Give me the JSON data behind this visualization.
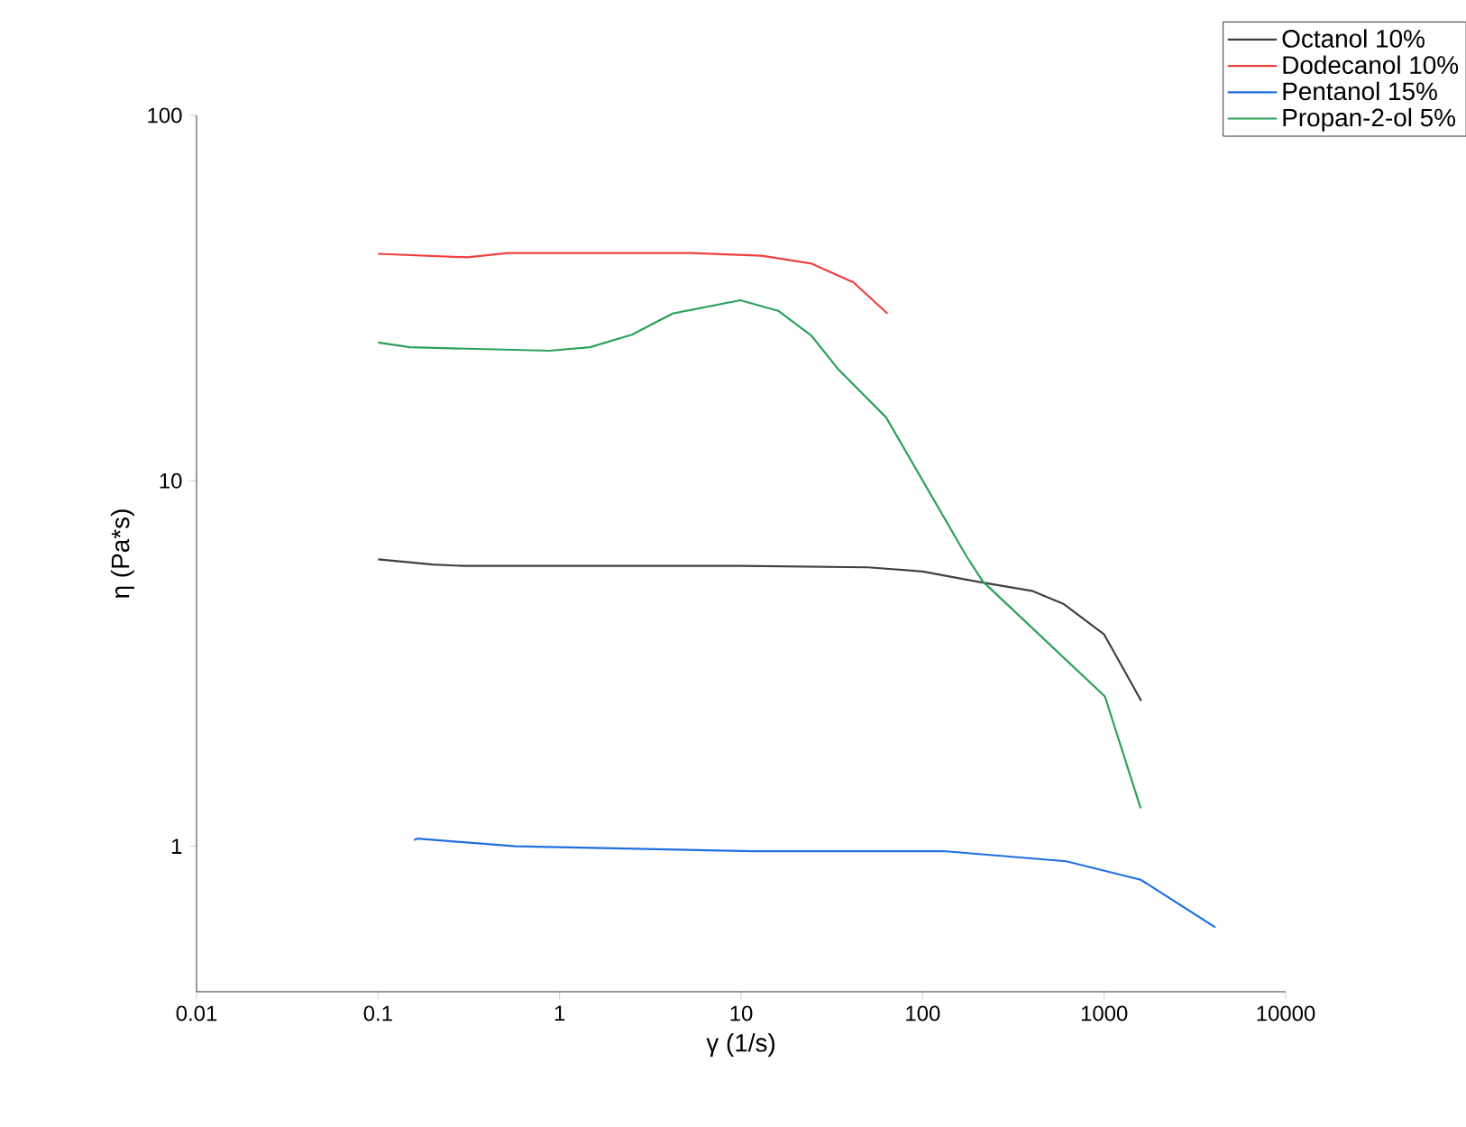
{
  "chart_data": {
    "type": "line",
    "xlabel": "γ (1/s)",
    "ylabel": "η (Pa*s)",
    "log": "xy",
    "xlim": [
      0.01,
      10000
    ],
    "ylim": [
      0.4,
      100
    ],
    "xticks": [
      0.01,
      0.1,
      1,
      10,
      100,
      1000,
      10000
    ],
    "yticks": [
      1,
      10,
      100
    ],
    "grid": false,
    "legend": "top right",
    "line_style": "solid",
    "marker": "none",
    "series": [
      {
        "name": "Octanol 10%",
        "color": "#404040",
        "x": [
          0.1,
          0.2,
          0.3,
          1,
          10,
          50,
          100,
          200,
          400,
          600,
          1000,
          1600
        ],
        "values": [
          6.1,
          5.9,
          5.85,
          5.85,
          5.85,
          5.8,
          5.65,
          5.3,
          5.0,
          4.6,
          3.8,
          2.5
        ]
      },
      {
        "name": "Dodecanol 10%",
        "color": "#f04040",
        "x": [
          0.1,
          0.31,
          0.52,
          5.2,
          13,
          24.5,
          41.6,
          64
        ],
        "values": [
          41.8,
          40.9,
          42,
          42,
          41.3,
          39.3,
          34.9,
          28.7
        ]
      },
      {
        "name": "Pentanol 15%",
        "color": "#1f6fe0",
        "x": [
          0.158,
          0.165,
          0.57,
          11.7,
          130,
          617,
          1590,
          4100
        ],
        "values": [
          1.04,
          1.05,
          1.0,
          0.97,
          0.97,
          0.91,
          0.81,
          0.6
        ]
      },
      {
        "name": "Propan-2-ol 5%",
        "color": "#2ca05a",
        "x": [
          0.1,
          0.15,
          0.88,
          1.47,
          2.5,
          4.2,
          9.9,
          16,
          24.5,
          34,
          63,
          175,
          215,
          1010,
          1590
        ],
        "values": [
          23.9,
          23.2,
          22.7,
          23.2,
          25.1,
          28.7,
          31.2,
          29.2,
          24.9,
          20.3,
          14.9,
          6.2,
          5.3,
          2.57,
          1.27
        ]
      }
    ]
  }
}
